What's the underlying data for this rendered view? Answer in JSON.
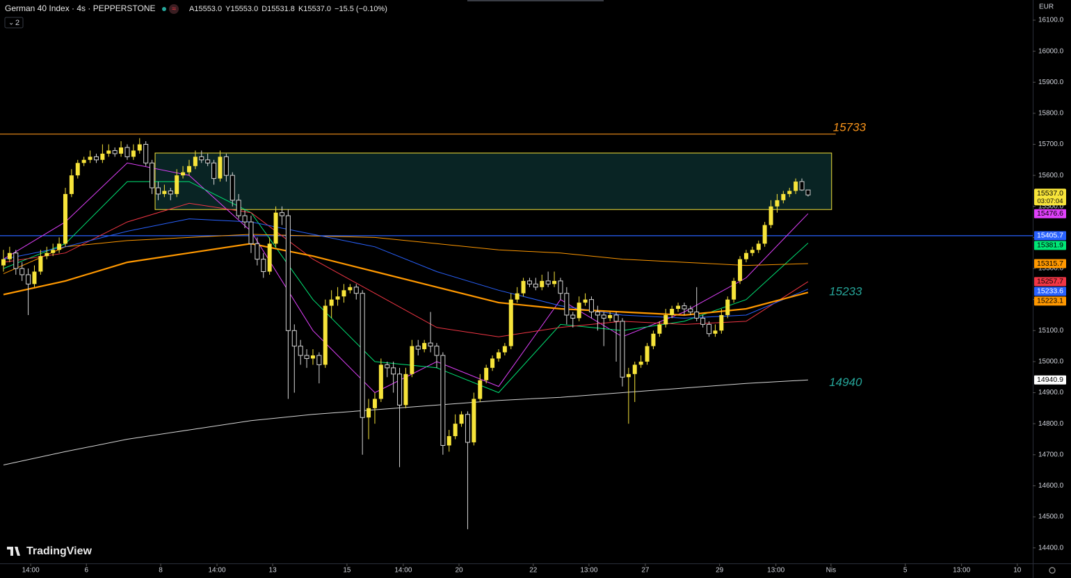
{
  "header": {
    "symbol": "German 40 Index · 4s · PEPPERSTONE",
    "ohlc": [
      "A15553.0",
      "Y15553.0",
      "D15531.8",
      "K15537.0"
    ],
    "change": "−15.5 (−0.10%)",
    "indicators": "2"
  },
  "currency": "EUR",
  "brand": "TradingView",
  "chart_data": {
    "type": "candlestick",
    "up_color": "#f7e43a",
    "down_color": "#000000",
    "down_border": "#d8d8d8",
    "xlim": [
      -0.56,
      166.3
    ],
    "xticks": [
      {
        "value": 4.4,
        "label": "14:00"
      },
      {
        "value": 13.4,
        "label": "6"
      },
      {
        "value": 25.4,
        "label": "8"
      },
      {
        "value": 34.5,
        "label": "14:00"
      },
      {
        "value": 43.5,
        "label": "13"
      },
      {
        "value": 55.5,
        "label": "15"
      },
      {
        "value": 64.6,
        "label": "14:00"
      },
      {
        "value": 73.6,
        "label": "20"
      },
      {
        "value": 85.6,
        "label": "22"
      },
      {
        "value": 94.6,
        "label": "13:00"
      },
      {
        "value": 103.7,
        "label": "27"
      },
      {
        "value": 115.7,
        "label": "29"
      },
      {
        "value": 124.8,
        "label": "13:00"
      },
      {
        "value": 133.7,
        "label": "Nis"
      },
      {
        "value": 145.7,
        "label": "5"
      },
      {
        "value": 154.8,
        "label": "13:00"
      },
      {
        "value": 163.8,
        "label": "10"
      }
    ],
    "ylim": [
      14350,
      16165
    ],
    "yticks": [
      {
        "value": 16100,
        "label": "16100.0"
      },
      {
        "value": 16000,
        "label": "16000.0"
      },
      {
        "value": 15900,
        "label": "15900.0"
      },
      {
        "value": 15800,
        "label": "15800.0"
      },
      {
        "value": 15700,
        "label": "15700.0"
      },
      {
        "value": 15600,
        "label": "15600.0"
      },
      {
        "value": 15500,
        "label": "15500.0"
      },
      {
        "value": 15400,
        "label": "15400.0"
      },
      {
        "value": 15300,
        "label": "15300.0"
      },
      {
        "value": 15200,
        "label": "15200.0"
      },
      {
        "value": 15100,
        "label": "15100.0"
      },
      {
        "value": 15000,
        "label": "15000.0"
      },
      {
        "value": 14900,
        "label": "14900.0"
      },
      {
        "value": 14800,
        "label": "14800.0"
      },
      {
        "value": 14700,
        "label": "14700.0"
      },
      {
        "value": 14600,
        "label": "14600.0"
      },
      {
        "value": 14500,
        "label": "14500.0"
      },
      {
        "value": 14400,
        "label": "14400.0"
      }
    ],
    "ohlc": [
      [
        15310,
        15360,
        15290,
        15330
      ],
      [
        15330,
        15370,
        15320,
        15350
      ],
      [
        15350,
        15360,
        15280,
        15300
      ],
      [
        15300,
        15320,
        15260,
        15280
      ],
      [
        15280,
        15300,
        15150,
        15250
      ],
      [
        15250,
        15310,
        15240,
        15290
      ],
      [
        15290,
        15360,
        15280,
        15340
      ],
      [
        15340,
        15370,
        15330,
        15350
      ],
      [
        15350,
        15380,
        15340,
        15360
      ],
      [
        15360,
        15400,
        15350,
        15380
      ],
      [
        15380,
        15560,
        15370,
        15540
      ],
      [
        15540,
        15620,
        15530,
        15600
      ],
      [
        15600,
        15650,
        15590,
        15640
      ],
      [
        15640,
        15660,
        15630,
        15650
      ],
      [
        15650,
        15680,
        15640,
        15660
      ],
      [
        15660,
        15670,
        15640,
        15650
      ],
      [
        15650,
        15700,
        15640,
        15670
      ],
      [
        15670,
        15700,
        15660,
        15680
      ],
      [
        15680,
        15690,
        15660,
        15670
      ],
      [
        15670,
        15710,
        15660,
        15690
      ],
      [
        15690,
        15700,
        15650,
        15660
      ],
      [
        15660,
        15700,
        15650,
        15680
      ],
      [
        15680,
        15720,
        15670,
        15700
      ],
      [
        15700,
        15710,
        15630,
        15640
      ],
      [
        15640,
        15650,
        15540,
        15560
      ],
      [
        15560,
        15580,
        15520,
        15540
      ],
      [
        15540,
        15570,
        15530,
        15550
      ],
      [
        15550,
        15560,
        15520,
        15540
      ],
      [
        15540,
        15620,
        15530,
        15600
      ],
      [
        15600,
        15630,
        15590,
        15610
      ],
      [
        15610,
        15650,
        15600,
        15630
      ],
      [
        15630,
        15680,
        15620,
        15660
      ],
      [
        15660,
        15680,
        15640,
        15650
      ],
      [
        15650,
        15670,
        15630,
        15640
      ],
      [
        15640,
        15650,
        15570,
        15590
      ],
      [
        15590,
        15680,
        15580,
        15660
      ],
      [
        15660,
        15670,
        15580,
        15600
      ],
      [
        15600,
        15610,
        15500,
        15520
      ],
      [
        15520,
        15540,
        15460,
        15470
      ],
      [
        15470,
        15490,
        15430,
        15450
      ],
      [
        15450,
        15470,
        15350,
        15380
      ],
      [
        15380,
        15400,
        15310,
        15330
      ],
      [
        15330,
        15350,
        15270,
        15290
      ],
      [
        15290,
        15400,
        15280,
        15380
      ],
      [
        15380,
        15500,
        15370,
        15480
      ],
      [
        15480,
        15500,
        15440,
        15470
      ],
      [
        15470,
        15490,
        14880,
        15100
      ],
      [
        15100,
        15120,
        14900,
        15050
      ],
      [
        15050,
        15070,
        14990,
        15020
      ],
      [
        15020,
        15040,
        14980,
        15010
      ],
      [
        15010,
        15040,
        14990,
        15020
      ],
      [
        15020,
        15030,
        14930,
        14990
      ],
      [
        14990,
        15200,
        14980,
        15180
      ],
      [
        15180,
        15230,
        15140,
        15200
      ],
      [
        15200,
        15240,
        15180,
        15210
      ],
      [
        15210,
        15250,
        15190,
        15230
      ],
      [
        15230,
        15250,
        15220,
        15240
      ],
      [
        15240,
        15250,
        15200,
        15220
      ],
      [
        15220,
        15230,
        14700,
        14820
      ],
      [
        14820,
        14880,
        14750,
        14850
      ],
      [
        14850,
        14900,
        14800,
        14880
      ],
      [
        14880,
        15010,
        14870,
        14990
      ],
      [
        14990,
        15000,
        14950,
        14980
      ],
      [
        14980,
        15000,
        14900,
        14960
      ],
      [
        14960,
        14980,
        14660,
        14860
      ],
      [
        14860,
        14980,
        14850,
        14960
      ],
      [
        14960,
        15070,
        14950,
        15050
      ],
      [
        15050,
        15070,
        15020,
        15040
      ],
      [
        15040,
        15070,
        15030,
        15060
      ],
      [
        15060,
        15160,
        15030,
        15050
      ],
      [
        15050,
        15060,
        14980,
        15020
      ],
      [
        15020,
        15030,
        14700,
        14730
      ],
      [
        14730,
        14780,
        14710,
        14760
      ],
      [
        14760,
        14830,
        14750,
        14800
      ],
      [
        14800,
        14840,
        14790,
        14830
      ],
      [
        14830,
        14840,
        14460,
        14740
      ],
      [
        14740,
        14900,
        14730,
        14880
      ],
      [
        14880,
        14960,
        14870,
        14940
      ],
      [
        14940,
        14990,
        14930,
        14980
      ],
      [
        14980,
        15020,
        14970,
        15010
      ],
      [
        15010,
        15040,
        15000,
        15030
      ],
      [
        15030,
        15060,
        15020,
        15050
      ],
      [
        15050,
        15220,
        15040,
        15200
      ],
      [
        15200,
        15240,
        15190,
        15220
      ],
      [
        15220,
        15270,
        15210,
        15260
      ],
      [
        15260,
        15270,
        15240,
        15250
      ],
      [
        15250,
        15270,
        15230,
        15240
      ],
      [
        15240,
        15280,
        15230,
        15260
      ],
      [
        15260,
        15290,
        15240,
        15250
      ],
      [
        15250,
        15290,
        15240,
        15260
      ],
      [
        15260,
        15270,
        15200,
        15220
      ],
      [
        15220,
        15240,
        15120,
        15150
      ],
      [
        15150,
        15160,
        15110,
        15140
      ],
      [
        15140,
        15210,
        15130,
        15190
      ],
      [
        15190,
        15220,
        15180,
        15200
      ],
      [
        15200,
        15210,
        15140,
        15160
      ],
      [
        15160,
        15180,
        15100,
        15150
      ],
      [
        15150,
        15160,
        15050,
        15140
      ],
      [
        15140,
        15160,
        15130,
        15150
      ],
      [
        15150,
        15160,
        15000,
        15130
      ],
      [
        15130,
        15140,
        14920,
        14950
      ],
      [
        14950,
        14980,
        14800,
        14960
      ],
      [
        14960,
        15000,
        14870,
        14990
      ],
      [
        14990,
        15020,
        14980,
        15000
      ],
      [
        15000,
        15060,
        14990,
        15050
      ],
      [
        15050,
        15100,
        15040,
        15090
      ],
      [
        15090,
        15130,
        15080,
        15120
      ],
      [
        15120,
        15170,
        15110,
        15150
      ],
      [
        15150,
        15180,
        15140,
        15170
      ],
      [
        15170,
        15190,
        15160,
        15180
      ],
      [
        15180,
        15190,
        15150,
        15170
      ],
      [
        15170,
        15180,
        15150,
        15160
      ],
      [
        15160,
        15240,
        15130,
        15140
      ],
      [
        15140,
        15150,
        15110,
        15120
      ],
      [
        15120,
        15130,
        15080,
        15090
      ],
      [
        15090,
        15120,
        15080,
        15100
      ],
      [
        15100,
        15170,
        15090,
        15150
      ],
      [
        15150,
        15210,
        15140,
        15200
      ],
      [
        15200,
        15270,
        15190,
        15260
      ],
      [
        15260,
        15340,
        15250,
        15330
      ],
      [
        15330,
        15360,
        15320,
        15350
      ],
      [
        15350,
        15370,
        15340,
        15360
      ],
      [
        15360,
        15390,
        15350,
        15380
      ],
      [
        15380,
        15450,
        15370,
        15440
      ],
      [
        15440,
        15520,
        15430,
        15500
      ],
      [
        15500,
        15540,
        15480,
        15520
      ],
      [
        15520,
        15550,
        15510,
        15540
      ],
      [
        15540,
        15560,
        15530,
        15550
      ],
      [
        15550,
        15590,
        15540,
        15580
      ],
      [
        15580,
        15590,
        15550,
        15553
      ],
      [
        15553,
        15553,
        15531.8,
        15537
      ]
    ],
    "last_price": {
      "label": "15537.0",
      "countdown": "03:07:04",
      "color": "#f7e43a"
    },
    "series": [
      {
        "color": "#e040fb",
        "width": 1,
        "x": [
          0,
          10,
          20,
          30,
          40,
          50,
          60,
          70,
          80,
          90,
          100,
          110,
          120,
          130
        ],
        "values": [
          15330,
          15450,
          15640,
          15600,
          15420,
          15100,
          14900,
          15000,
          14920,
          15200,
          15080,
          15160,
          15270,
          15476.6
        ]
      },
      {
        "color": "#00e676",
        "width": 1,
        "x": [
          0,
          10,
          20,
          30,
          40,
          50,
          60,
          70,
          80,
          90,
          100,
          110,
          120,
          130
        ],
        "values": [
          15300,
          15380,
          15580,
          15580,
          15480,
          15200,
          15000,
          14980,
          14900,
          15120,
          15100,
          15130,
          15200,
          15381.9
        ]
      },
      {
        "color": "#ff9800",
        "width": 1,
        "x": [
          0,
          10,
          20,
          30,
          40,
          50,
          60,
          70,
          80,
          90,
          100,
          110,
          120,
          130
        ],
        "values": [
          15283,
          15370,
          15390,
          15400,
          15410,
          15405,
          15400,
          15380,
          15360,
          15350,
          15330,
          15320,
          15310,
          15315.7
        ]
      },
      {
        "color": "#f23645",
        "width": 1,
        "x": [
          0,
          10,
          20,
          30,
          40,
          50,
          60,
          70,
          80,
          90,
          100,
          110,
          120,
          130
        ],
        "values": [
          15320,
          15350,
          15450,
          15510,
          15480,
          15330,
          15220,
          15110,
          15080,
          15110,
          15130,
          15120,
          15130,
          15257.7
        ]
      },
      {
        "color": "#2962ff",
        "width": 1,
        "x": [
          0,
          10,
          20,
          30,
          40,
          50,
          60,
          70,
          80,
          90,
          100,
          110,
          120,
          130
        ],
        "values": [
          15330,
          15370,
          15420,
          15460,
          15450,
          15410,
          15370,
          15290,
          15230,
          15180,
          15150,
          15140,
          15150,
          15233.6
        ]
      },
      {
        "color": "#ff9800",
        "width": 2.2,
        "x": [
          0,
          10,
          20,
          30,
          40,
          50,
          60,
          70,
          80,
          90,
          100,
          110,
          120,
          130
        ],
        "values": [
          15216,
          15260,
          15320,
          15350,
          15380,
          15340,
          15290,
          15240,
          15190,
          15170,
          15160,
          15150,
          15170,
          15223.1
        ]
      },
      {
        "color": "#d8d8d8",
        "width": 1,
        "x": [
          0,
          10,
          20,
          30,
          40,
          50,
          60,
          70,
          80,
          90,
          100,
          110,
          120,
          130
        ],
        "values": [
          14667,
          14710,
          14750,
          14780,
          14810,
          14830,
          14845,
          14860,
          14875,
          14885,
          14900,
          14915,
          14930,
          14940.9
        ]
      }
    ],
    "hlines": [
      {
        "value": 15733,
        "color": "#f7931a",
        "label": true
      },
      {
        "value": 15405.7,
        "color": "#2962ff",
        "tag": true
      }
    ],
    "zone": {
      "x": [
        24.5,
        133.8
      ],
      "y": [
        15490,
        15672
      ],
      "color": "#f7e43a"
    },
    "annotations": [
      {
        "value": 15233,
        "color": "#26a69a",
        "x": 133.4
      },
      {
        "value": 14940,
        "color": "#26a69a",
        "x": 133.4
      }
    ]
  }
}
